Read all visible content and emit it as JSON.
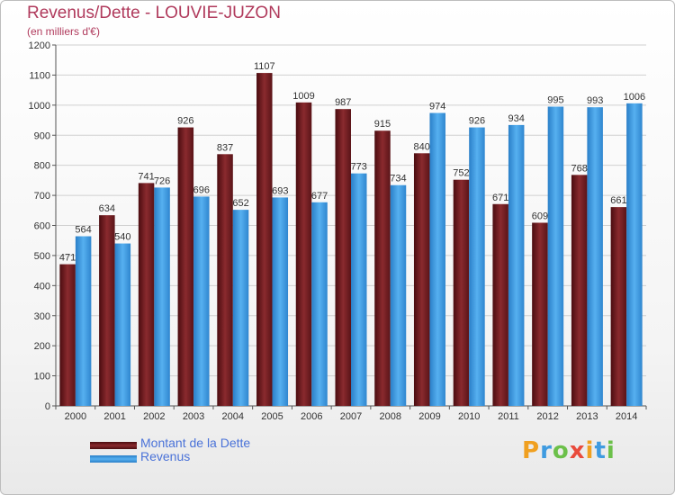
{
  "title": "Revenus/Dette - LOUVIE-JUZON",
  "subtitle": "(en milliers d'€)",
  "colors": {
    "dette": "#7a1f24",
    "revenus": "#3f9be0",
    "title": "#b03a5c",
    "legend_text": "#4a72d8",
    "grid": "#d0d0d0"
  },
  "logo": {
    "letters": [
      "P",
      "r",
      "o",
      "x",
      "i",
      "t",
      "i"
    ],
    "colors": [
      "#f0a020",
      "#3f9be0",
      "#6cc04a",
      "#e94b3c",
      "#f0a020",
      "#3f9be0",
      "#6cc04a"
    ]
  },
  "legend": [
    {
      "label": "Montant de la Dette",
      "color": "#7a1f24"
    },
    {
      "label": "Revenus",
      "color": "#3f9be0"
    }
  ],
  "chart_data": {
    "type": "bar",
    "title": "Revenus/Dette - LOUVIE-JUZON",
    "subtitle": "(en milliers d'€)",
    "categories": [
      "2000",
      "2001",
      "2002",
      "2003",
      "2004",
      "2005",
      "2006",
      "2007",
      "2008",
      "2009",
      "2010",
      "2011",
      "2012",
      "2013",
      "2014"
    ],
    "series": [
      {
        "name": "Montant de la Dette",
        "values": [
          471,
          634,
          741,
          926,
          837,
          1107,
          1009,
          987,
          915,
          840,
          752,
          671,
          609,
          768,
          661
        ]
      },
      {
        "name": "Revenus",
        "values": [
          564,
          540,
          726,
          696,
          652,
          693,
          677,
          773,
          734,
          974,
          926,
          934,
          995,
          993,
          1006
        ]
      }
    ],
    "value_labels": [
      [
        "471",
        "634",
        "741",
        "926",
        "837",
        "1107",
        "1009",
        "987",
        "915",
        "840",
        "752",
        "671",
        "609",
        "768",
        "661"
      ],
      [
        "564",
        "540",
        "726",
        "696",
        "652",
        "693",
        "677",
        "773",
        "734",
        "974",
        "926",
        "934",
        "995",
        "993",
        "1006"
      ]
    ],
    "ylim": [
      0,
      1200
    ],
    "yticks": [
      0,
      100,
      200,
      300,
      400,
      500,
      600,
      700,
      800,
      900,
      1000,
      1100,
      1200
    ],
    "grid": true,
    "legend_position": "bottom-left"
  }
}
